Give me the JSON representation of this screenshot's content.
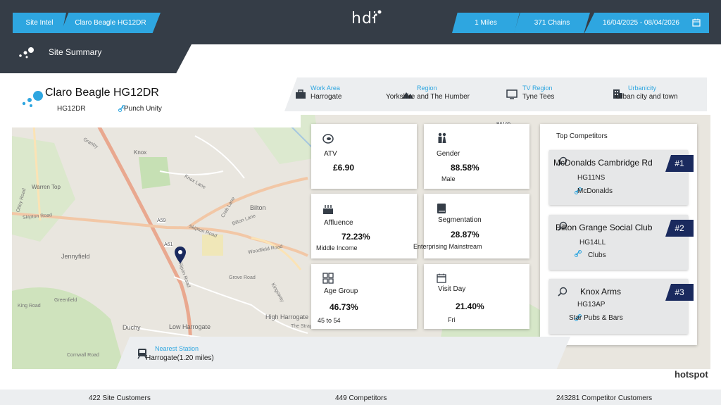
{
  "topbar": {
    "site_intel": "Site Intel",
    "site_chip": "Claro Beagle HG12DR",
    "logo": "hdi",
    "miles": "1 Miles",
    "chains": "371 Chains",
    "dates": "16/04/2025 - 08/04/2026"
  },
  "subbar": {
    "title": "Site Summary"
  },
  "site": {
    "name": "Claro Beagle HG12DR",
    "postcode": "HG12DR",
    "category": "Punch Unity"
  },
  "info": [
    {
      "label": "Work Area",
      "value": "Harrogate",
      "icon": "briefcase-icon"
    },
    {
      "label": "Region",
      "value": "Yorkshire and The Humber",
      "icon": "mountain-icon"
    },
    {
      "label": "TV Region",
      "value": "Tyne Tees",
      "icon": "tv-icon"
    },
    {
      "label": "Urbanicity",
      "value": "Urban city and town",
      "icon": "building-icon"
    }
  ],
  "map_labels": {
    "bilton": "Bilton",
    "jennyfield": "Jennyfield",
    "low_harrogate": "Low Harrogate",
    "high_harrogate": "High Harrogate",
    "duchy": "Duchy",
    "knox": "Knox",
    "warren_top": "Warren Top",
    "knox_lane": "Knox Lane",
    "skipton_road": "Skipton Road",
    "ripon_road": "Ripon Road",
    "a59": "A59",
    "a61": "A61",
    "woodfield_road": "Woodfield Road",
    "grove_road": "Grove Road",
    "the_stray": "The Stray",
    "granby": "Granby",
    "cornwall_road": "Cornwall Road",
    "bilton_lane": "Bilton Lane",
    "otley_road": "Otley Road",
    "kingsway": "Kingsway",
    "crab_lane": "Crab Lane",
    "skipton_road2": "Skipton Road",
    "king_road": "King Road",
    "b6165": "B6165",
    "greenfield": "Greenfield"
  },
  "stats": [
    {
      "title": "ATV",
      "value": "£6.90",
      "sub": "",
      "icon": "coin-icon"
    },
    {
      "title": "Gender",
      "value": "88.58%",
      "sub": "Male",
      "icon": "people-icon"
    },
    {
      "title": "Affluence",
      "value": "72.23%",
      "sub": "Middle Income",
      "icon": "cake-icon"
    },
    {
      "title": "Segmentation",
      "value": "28.87%",
      "sub": "Enterprising Mainstream",
      "icon": "book-icon"
    },
    {
      "title": "Age Group",
      "value": "46.73%",
      "sub": "45 to 54",
      "icon": "grid-icon"
    },
    {
      "title": "Visit Day",
      "value": "21.40%",
      "sub": "Fri",
      "icon": "calendar-icon"
    }
  ],
  "competitors": {
    "title": "Top Competitors",
    "items": [
      {
        "name": "McDonalds Cambridge Rd",
        "postcode": "HG11NS",
        "category": "McDonalds",
        "rank": "#1"
      },
      {
        "name": "Bilton Grange Social Club",
        "postcode": "HG14LL",
        "category": "Clubs",
        "rank": "#2"
      },
      {
        "name": "Knox Arms",
        "postcode": "HG13AP",
        "category": "Star Pubs & Bars",
        "rank": "#3"
      }
    ]
  },
  "station": {
    "label": "Nearest Station",
    "value": "Harrogate(1.20 miles)"
  },
  "footer": {
    "site_customers": "422 Site Customers",
    "competitors": "449 Competitors",
    "competitor_customers": "243281 Competitor Customers"
  },
  "brand": "hotspot",
  "colors": {
    "dark": "#353d47",
    "accent": "#2ea6e0",
    "rank": "#1a2a5e"
  }
}
